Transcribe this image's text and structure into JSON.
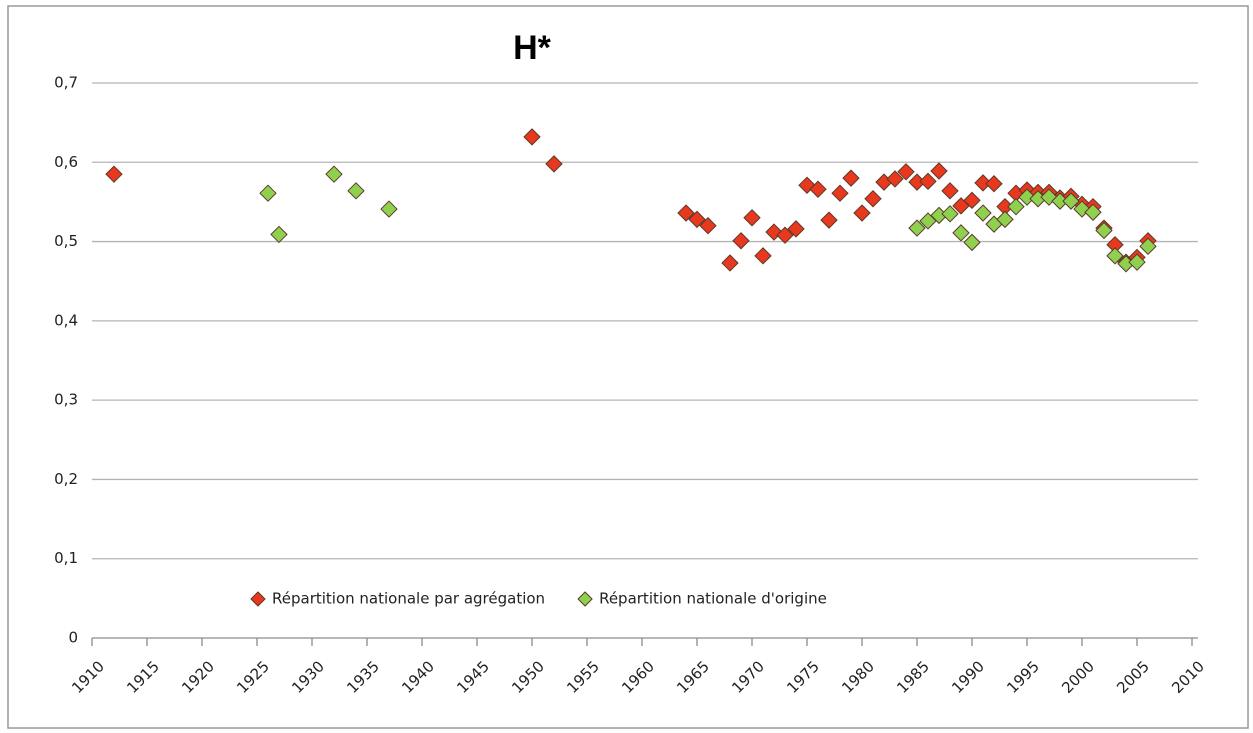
{
  "chart_data": {
    "type": "scatter",
    "title": "H*",
    "xlim": [
      1910,
      2010
    ],
    "xticks": [
      1910,
      1915,
      1920,
      1925,
      1930,
      1935,
      1940,
      1945,
      1950,
      1955,
      1960,
      1965,
      1970,
      1975,
      1980,
      1985,
      1990,
      1995,
      2000,
      2005,
      2010
    ],
    "ylim": [
      0,
      0.7
    ],
    "yticks": [
      0,
      {
        "value": 0.1,
        "label": "0,1"
      },
      {
        "value": 0.2,
        "label": "0,2"
      },
      {
        "value": 0.3,
        "label": "0,3"
      },
      {
        "value": 0.4,
        "label": "0,4"
      },
      {
        "value": 0.5,
        "label": "0,5"
      },
      {
        "value": 0.6,
        "label": "0,6"
      },
      {
        "value": 0.7,
        "label": "0,7"
      }
    ],
    "grid": true,
    "legend": "bottom",
    "series": [
      {
        "name": "Répartition nationale par agrégation",
        "color": "#e8381e",
        "x": [
          1912,
          1950,
          1952,
          1964,
          1965,
          1966,
          1968,
          1969,
          1970,
          1971,
          1972,
          1973,
          1974,
          1975,
          1976,
          1977,
          1978,
          1979,
          1980,
          1981,
          1982,
          1983,
          1984,
          1985,
          1986,
          1987,
          1988,
          1989,
          1990,
          1991,
          1992,
          1993,
          1994,
          1995,
          1996,
          1997,
          1998,
          1999,
          2000,
          2001,
          2002,
          2003,
          2004,
          2005,
          2006
        ],
        "values": [
          0.585,
          0.632,
          0.598,
          0.536,
          0.528,
          0.52,
          0.473,
          0.501,
          0.53,
          0.482,
          0.512,
          0.508,
          0.516,
          0.571,
          0.566,
          0.527,
          0.561,
          0.58,
          0.536,
          0.554,
          0.575,
          0.579,
          0.588,
          0.575,
          0.576,
          0.589,
          0.564,
          0.545,
          0.552,
          0.574,
          0.573,
          0.544,
          0.561,
          0.565,
          0.562,
          0.562,
          0.555,
          0.557,
          0.547,
          0.544,
          0.517,
          0.496,
          0.474,
          0.48,
          0.501
        ]
      },
      {
        "name": "Répartition nationale d'origine",
        "color": "#8fd14f",
        "x": [
          1926,
          1927,
          1932,
          1934,
          1937,
          1985,
          1986,
          1987,
          1988,
          1989,
          1990,
          1991,
          1992,
          1993,
          1994,
          1995,
          1996,
          1997,
          1998,
          1999,
          2000,
          2001,
          2002,
          2003,
          2004,
          2005,
          2006
        ],
        "values": [
          0.561,
          0.509,
          0.585,
          0.564,
          0.541,
          0.517,
          0.526,
          0.533,
          0.535,
          0.511,
          0.499,
          0.536,
          0.522,
          0.528,
          0.544,
          0.556,
          0.554,
          0.556,
          0.551,
          0.551,
          0.541,
          0.537,
          0.514,
          0.482,
          0.472,
          0.474,
          0.494
        ]
      }
    ]
  }
}
